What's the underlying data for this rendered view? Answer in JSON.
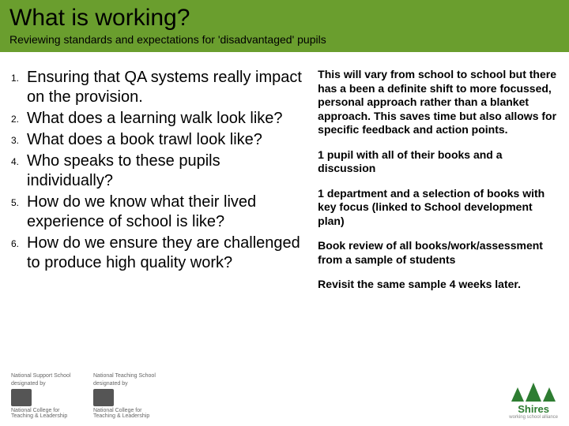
{
  "header": {
    "title": "What is working?",
    "subtitle": "Reviewing standards and expectations for 'disadvantaged' pupils",
    "bg_color": "#6a9e2e"
  },
  "left_list": [
    "Ensuring that QA systems really impact on the provision.",
    "What does a learning walk look like?",
    "What does a book trawl look like?",
    "Who speaks to these pupils individually?",
    "How do we know what their lived experience of school is like?",
    "How do we ensure they are challenged to produce high quality work?"
  ],
  "right_paras": [
    "This will vary from school to school but there has a been a definite shift to more focussed, personal approach rather than a blanket approach. This saves time but also allows for specific feedback and action points.",
    "1 pupil with all of their books and a discussion",
    "1 department and a selection of books with key focus (linked to School development plan)",
    "Book review of all books/work/assessment from a sample of students",
    "Revisit the same sample 4 weeks later."
  ],
  "footer": {
    "block1_line1": "National Support School",
    "block1_line2": "designated by",
    "block2_line1": "National Teaching School",
    "block2_line2": "designated by",
    "block_sub": "National College for Teaching & Leadership",
    "brand": "Shires",
    "brand_sub": "working school alliance"
  }
}
